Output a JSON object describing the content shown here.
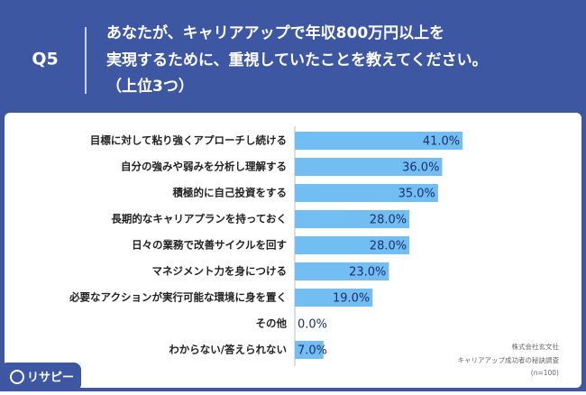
{
  "header": {
    "question": "Q5"
  },
  "chart_data": {
    "type": "bar",
    "title": [
      "あなたが、キャリアアップで年収800万円以上を",
      "実現するために、重視していたことを教えてください。",
      "（上位3つ）"
    ],
    "categories": [
      "目標に対して粘り強くアプローチし続ける",
      "自分の強みや弱みを分析し理解する",
      "積極的に自己投資をする",
      "長期的なキャリアプランを持っておく",
      "日々の業務で改善サイクルを回す",
      "マネジメント力を身につける",
      "必要なアクションが実行可能な環境に身を置く",
      "その他",
      "わからない/答えられない"
    ],
    "values": [
      41,
      36,
      35,
      28,
      28,
      23,
      19,
      0,
      7
    ],
    "value_labels": [
      "41.0%",
      "36.0%",
      "35.0%",
      "28.0%",
      "28.0%",
      "23.0%",
      "19.0%",
      "0.0%",
      "7.0%"
    ],
    "color": "#72bdf2",
    "xlim": [
      0,
      50
    ]
  },
  "source": [
    "株式会社玄文社",
    "キャリアアップ成功者の秘訣調査",
    "(n=100)"
  ],
  "brand": "リサピー"
}
